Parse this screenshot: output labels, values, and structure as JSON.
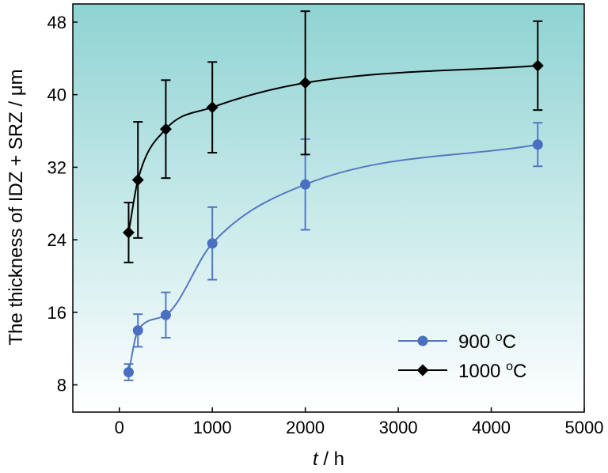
{
  "chart_data": {
    "type": "scatter",
    "xlabel": {
      "italic": "t",
      "rest": " / h"
    },
    "ylabel": "The thickness of IDZ + SRZ / μm",
    "xlim": [
      -500,
      5000
    ],
    "ylim": [
      5,
      50
    ],
    "xticks": [
      0,
      1000,
      2000,
      3000,
      4000,
      5000
    ],
    "yticks": [
      8,
      16,
      24,
      32,
      40,
      48
    ],
    "legend_position": "bottom-right",
    "background": {
      "top": "#8fd3d3",
      "bottom": "#ffffff"
    },
    "series": [
      {
        "name": "900 °C",
        "legend_label": {
          "main": "900 ",
          "sup": "o",
          "unit": "C"
        },
        "marker": "circle",
        "color": "#4a6fc0",
        "line_color": "#5577c2",
        "x": [
          100,
          200,
          500,
          1000,
          2000,
          4500
        ],
        "y": [
          9.4,
          14.0,
          15.7,
          23.6,
          30.1,
          34.5
        ],
        "err": [
          0.9,
          1.8,
          2.5,
          4.0,
          5.0,
          2.4
        ]
      },
      {
        "name": "1000 °C",
        "legend_label": {
          "main": "1000 ",
          "sup": "o",
          "unit": "C"
        },
        "marker": "diamond",
        "color": "#000000",
        "line_color": "#000000",
        "x": [
          100,
          200,
          500,
          1000,
          2000,
          4500
        ],
        "y": [
          24.8,
          30.6,
          36.2,
          38.6,
          41.3,
          43.2
        ],
        "err": [
          3.3,
          6.4,
          5.4,
          5.0,
          7.9,
          4.9
        ]
      }
    ]
  }
}
